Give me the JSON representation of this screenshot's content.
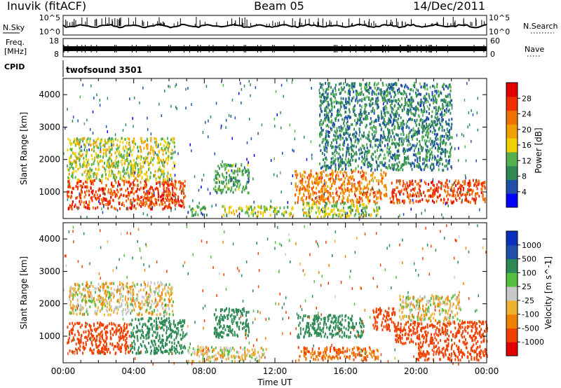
{
  "header": {
    "station": "Inuvik (fitACF)",
    "beam": "Beam 05",
    "date": "14/Dec/2011"
  },
  "status_panels": {
    "nsky_label": "N.Sky",
    "nsearch_label": "N.Search",
    "freq_label_1": "Freq.",
    "freq_label_2": "[MHz]",
    "nave_label": "Nave",
    "cpid_label": "CPID",
    "cpid_value": "twofsound 3501",
    "noise_left_ticks": [
      "10^5",
      "10^0"
    ],
    "noise_right_ticks": [
      "10^5",
      "10^0"
    ],
    "freq_left_ticks": [
      "18",
      "8"
    ],
    "nave_right_ticks": [
      "60",
      "0"
    ]
  },
  "colors": {
    "power_scale": [
      "#0000ff",
      "#1f4fa8",
      "#2e8a55",
      "#55b050",
      "#f0d000",
      "#f0a000",
      "#f07000",
      "#f03000",
      "#e00000"
    ],
    "velocity_scale": [
      "#e00000",
      "#f04000",
      "#f08000",
      "#f0b030",
      "#c8c8c8",
      "#55c040",
      "#2e8a55",
      "#1f4fa8",
      "#0a30c0"
    ]
  },
  "chart_data": [
    {
      "type": "heatmap",
      "parameter": "power",
      "title": "",
      "ylabel": "Slant Range [km]",
      "xlabel": "",
      "xlim": [
        "00:00",
        "24:00"
      ],
      "ylim": [
        180,
        4500
      ],
      "y_ticks": [
        "1000",
        "2000",
        "3000",
        "4000"
      ],
      "colorbar_label": "Power [dB]",
      "colorbar_range": [
        0,
        32
      ],
      "colorbar_ticks": [
        "4",
        "8",
        "12",
        "16",
        "20",
        "24",
        "28"
      ],
      "grid": false,
      "regions": [
        {
          "t": [
            0.2,
            6.9
          ],
          "range": [
            500,
            1400
          ],
          "dB": 27
        },
        {
          "t": [
            0.2,
            6.3
          ],
          "range": [
            1400,
            2700
          ],
          "dB": 15
        },
        {
          "t": [
            7.0,
            8.1
          ],
          "range": [
            300,
            600
          ],
          "dB": 10
        },
        {
          "t": [
            8.5,
            10.5
          ],
          "range": [
            1000,
            1900
          ],
          "dB": 10
        },
        {
          "t": [
            9.0,
            13.0
          ],
          "range": [
            300,
            600
          ],
          "dB": 14
        },
        {
          "t": [
            13.1,
            18.3
          ],
          "range": [
            700,
            1700
          ],
          "dB": 23
        },
        {
          "t": [
            13.5,
            18.0
          ],
          "range": [
            250,
            700
          ],
          "dB": 14
        },
        {
          "t": [
            18.5,
            23.9
          ],
          "range": [
            700,
            1400
          ],
          "dB": 27
        },
        {
          "t": [
            14.5,
            22.0
          ],
          "range": [
            1700,
            4400
          ],
          "dB": 8
        }
      ]
    },
    {
      "type": "heatmap",
      "parameter": "velocity",
      "title": "",
      "ylabel": "Slant Range [km]",
      "xlabel": "Time UT",
      "xlim": [
        "00:00",
        "24:00"
      ],
      "ylim": [
        180,
        4500
      ],
      "y_ticks": [
        "1000",
        "2000",
        "3000",
        "4000"
      ],
      "x_ticks": [
        "00:00",
        "04:00",
        "08:00",
        "12:00",
        "16:00",
        "20:00",
        "00:00"
      ],
      "colorbar_label": "Velocity [m s^-1]",
      "colorbar_ticks": [
        "1000",
        "500",
        "100",
        "25",
        "-25",
        "-100",
        "-500",
        "-1000"
      ],
      "grid": false,
      "regions": [
        {
          "t": [
            0.2,
            3.8
          ],
          "range": [
            500,
            1450
          ],
          "v": -300
        },
        {
          "t": [
            3.8,
            6.9
          ],
          "range": [
            500,
            1600
          ],
          "v": 200
        },
        {
          "t": [
            0.3,
            6.2
          ],
          "range": [
            1700,
            2700
          ],
          "v": 0
        },
        {
          "t": [
            7.0,
            11.5
          ],
          "range": [
            250,
            700
          ],
          "v": 0
        },
        {
          "t": [
            8.5,
            10.5
          ],
          "range": [
            1000,
            1900
          ],
          "v": 300
        },
        {
          "t": [
            13.2,
            17.0
          ],
          "range": [
            1000,
            1700
          ],
          "v": 200
        },
        {
          "t": [
            13.2,
            18.0
          ],
          "range": [
            300,
            700
          ],
          "v": -100
        },
        {
          "t": [
            17.5,
            18.8
          ],
          "range": [
            1200,
            1900
          ],
          "v": -300
        },
        {
          "t": [
            18.8,
            24.0
          ],
          "range": [
            800,
            1500
          ],
          "v": -300
        },
        {
          "t": [
            19.0,
            22.5
          ],
          "range": [
            1500,
            2300
          ],
          "v": 0
        },
        {
          "t": [
            20.0,
            24.0
          ],
          "range": [
            300,
            800
          ],
          "v": -200
        }
      ]
    }
  ]
}
